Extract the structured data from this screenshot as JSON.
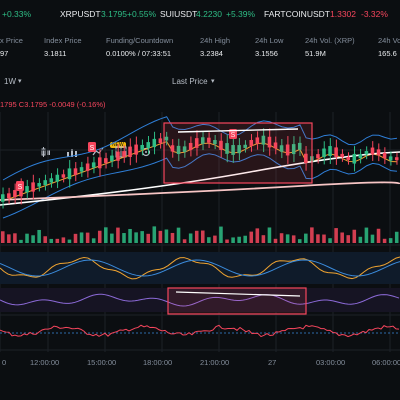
{
  "ticker": [
    {
      "pct": "+0.33%",
      "dir": "up"
    },
    {
      "symbol": "XRPUSDT",
      "price": "3.1795",
      "pct": "+0.55%",
      "dir": "up"
    },
    {
      "symbol": "SUIUSDT",
      "price": "4.2230",
      "pct": "+5.39%",
      "dir": "up"
    },
    {
      "symbol": "FARTCOINUSDT",
      "price": "1.3302",
      "pct": "-3.32%",
      "dir": "down"
    }
  ],
  "stats": {
    "mark": {
      "label": "x Price",
      "value": "97"
    },
    "index": {
      "label": "Index Price",
      "value": "3.1811"
    },
    "funding": {
      "label": "Funding/Countdown",
      "value": "0.0100% / 07:33:51"
    },
    "high": {
      "label": "24h High",
      "value": "3.2384"
    },
    "low": {
      "label": "24h Low",
      "value": "3.1556"
    },
    "vol": {
      "label": "24h Vol. (XRP)",
      "value": "51.9M"
    },
    "turnover": {
      "label": "24h Vo",
      "value": "165.6"
    }
  },
  "toolbar": {
    "interval": "1W",
    "price_mode": "Last Price",
    "new_badge": "NEW"
  },
  "ohlc": {
    "high": "1795",
    "close": "C3.1795",
    "change": "-0.0049 (-0.16%)"
  },
  "signal_marker": "S",
  "x_axis": [
    "0",
    "12:00:00",
    "15:00:00",
    "18:00:00",
    "21:00:00",
    "27",
    "03:00:00",
    "06:00:00"
  ],
  "colors": {
    "up": "#2ebd85",
    "down": "#f6465d",
    "background": "#0b0e11",
    "bollinger": "#2f7fd8",
    "ma": "#f0a431",
    "long_ma": "#f7c5c5",
    "trend": "#ffffff",
    "highlight": "#f6465d"
  },
  "icons": [
    "chevron-down-icon",
    "candlestick-icon",
    "indicator-icon",
    "settings-icon"
  ]
}
